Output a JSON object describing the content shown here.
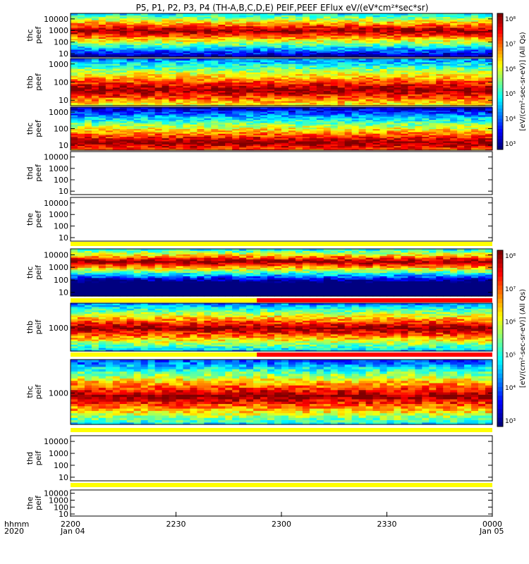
{
  "title": "P5, P1, P2, P3, P4 (TH-A,B,C,D,E) PEIF,PEEF EFlux eV/(eV*cm²*sec*sr)",
  "time_axis": {
    "row_label_1": "hhmm",
    "row_label_2": "2020",
    "ticks": [
      "2200",
      "2230",
      "2300",
      "2330",
      "0000"
    ],
    "date_left": "Jan 04",
    "date_right": "Jan 05"
  },
  "colorbar_labels": {
    "electron": "[eV/(cm²-sec-sr-eV)] (All Qs)",
    "ion": "[eV/(cm²-sec-sr-eV)] (All Qs)"
  },
  "colorbar_ticks_electron": [
    "10⁸",
    "10⁷",
    "10⁶",
    "10⁵",
    "10⁴",
    "10³"
  ],
  "colorbar_ticks_ion": [
    "10⁸",
    "10⁷",
    "10⁶",
    "10⁵",
    "10⁴",
    "10³"
  ],
  "chart_data": {
    "type": "heatmap",
    "title": "P5, P1, P2, P3, P4 (TH-A,B,C,D,E) PEIF,PEEF EFlux eV/(eV*cm²*sec*sr)",
    "x_range": [
      "2020-01-04 22:00",
      "2020-01-05 00:00"
    ],
    "x_ticks": [
      "2200",
      "2230",
      "2300",
      "2330",
      "0000"
    ],
    "y_scale": "log",
    "z_scale": "log",
    "z_range": [
      1000,
      100000000
    ],
    "panels": [
      {
        "label": "thc peef",
        "probe": "thc",
        "species": "electron",
        "has_data": true,
        "ylim": [
          5,
          30000
        ],
        "y_ticks": [
          "10000",
          "1000",
          "100",
          "10"
        ],
        "peak_energy": 1000,
        "status_bar": "none"
      },
      {
        "label": "thb peef",
        "probe": "thb",
        "species": "electron",
        "has_data": true,
        "ylim": [
          5,
          2000
        ],
        "y_ticks": [
          "1000",
          "100",
          "10"
        ],
        "peak_energy": 40,
        "status_bar": "none"
      },
      {
        "label": "thc peef",
        "probe": "thc",
        "species": "electron",
        "has_data": true,
        "ylim": [
          5,
          2000
        ],
        "y_ticks": [
          "1000",
          "100",
          "10"
        ],
        "peak_energy": 15,
        "status_bar": "none"
      },
      {
        "label": "thd peef",
        "probe": "thd",
        "species": "electron",
        "has_data": false,
        "ylim": [
          5,
          30000
        ],
        "y_ticks": [
          "10000",
          "1000",
          "100",
          "10"
        ],
        "status_bar": "none"
      },
      {
        "label": "the peef",
        "probe": "the",
        "species": "electron",
        "has_data": false,
        "ylim": [
          5,
          30000
        ],
        "y_ticks": [
          "10000",
          "1000",
          "100",
          "10"
        ],
        "status_bar": "yellow"
      },
      {
        "label": "thc peif",
        "probe": "thc",
        "species": "ion",
        "has_data": true,
        "ylim": [
          5,
          30000
        ],
        "y_ticks": [
          "10000",
          "1000",
          "100",
          "10"
        ],
        "peak_energy": 3000,
        "status_bar": "yellow/red split at 22:53"
      },
      {
        "label": "thb peif",
        "probe": "thb",
        "species": "ion",
        "has_data": true,
        "ylim": [
          80,
          15000
        ],
        "y_ticks": [
          "1000"
        ],
        "peak_energy": 1000,
        "status_bar": "yellow/red split at 22:53"
      },
      {
        "label": "thc peif",
        "probe": "thc",
        "species": "ion",
        "has_data": true,
        "ylim": [
          80,
          15000
        ],
        "y_ticks": [
          "1000"
        ],
        "peak_energy": 800,
        "status_bar": "yellow"
      },
      {
        "label": "thd peif",
        "probe": "thd",
        "species": "ion",
        "has_data": false,
        "ylim": [
          5,
          30000
        ],
        "y_ticks": [
          "10000",
          "1000",
          "100",
          "10"
        ],
        "status_bar": "yellow"
      },
      {
        "label": "the peif",
        "probe": "the",
        "species": "ion",
        "has_data": false,
        "ylim": [
          5,
          30000
        ],
        "y_ticks": [
          "10000",
          "1000",
          "100",
          "10"
        ],
        "status_bar": "none"
      }
    ]
  },
  "colors": {
    "status_yellow": "#ffff00",
    "status_red": "#ff0000"
  }
}
